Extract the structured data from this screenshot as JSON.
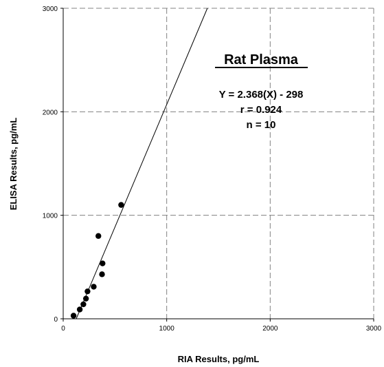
{
  "chart_data": {
    "type": "scatter",
    "title": "",
    "xlabel": "RIA Results, pg/mL",
    "ylabel": "ELISA Results, pg/mL",
    "xlim": [
      0,
      3000
    ],
    "ylim": [
      0,
      3000
    ],
    "x_ticks": [
      "0",
      "1000",
      "2000",
      "3000"
    ],
    "y_ticks": [
      "0",
      "1000",
      "2000",
      "3000"
    ],
    "grid": true,
    "grid_style": "dashed",
    "series": [
      {
        "points": [
          {
            "x": 100,
            "y": 30
          },
          {
            "x": 160,
            "y": 90
          },
          {
            "x": 195,
            "y": 140
          },
          {
            "x": 220,
            "y": 195
          },
          {
            "x": 235,
            "y": 265
          },
          {
            "x": 295,
            "y": 310
          },
          {
            "x": 340,
            "y": 800
          },
          {
            "x": 375,
            "y": 430
          },
          {
            "x": 380,
            "y": 535
          },
          {
            "x": 560,
            "y": 1100
          }
        ],
        "color": "#000000"
      }
    ],
    "regression": {
      "slope": 2.368,
      "intercept": -298
    },
    "annotations": {
      "panel_title": "Rat Plasma",
      "equation": "Y = 2.368(X) - 298",
      "r": "r = 0.924",
      "n": "n = 10"
    }
  }
}
